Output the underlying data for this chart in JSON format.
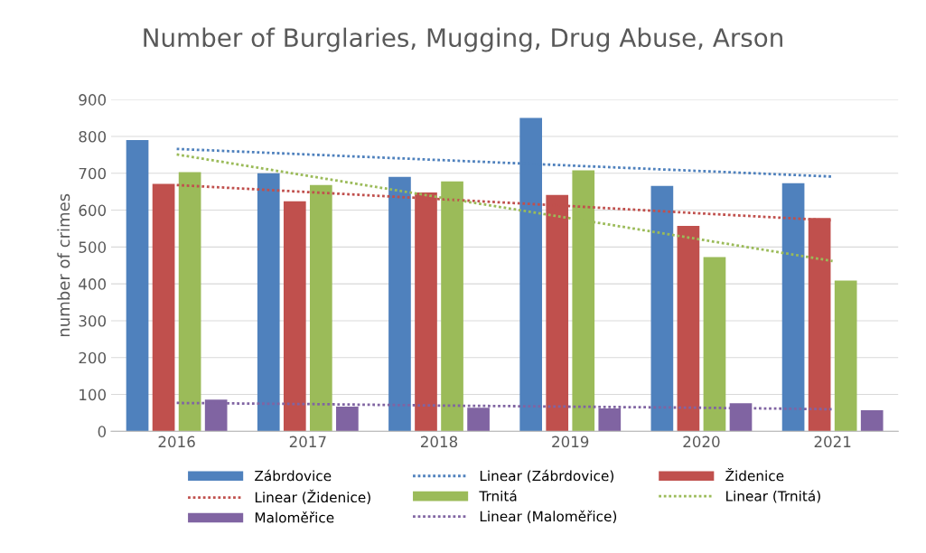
{
  "chart_data": {
    "type": "bar",
    "title": "Number of Burglaries, Mugging, Drug Abuse, Arson",
    "ylabel": "number of crimes",
    "categories": [
      "2016",
      "2017",
      "2018",
      "2019",
      "2020",
      "2021"
    ],
    "series": [
      {
        "name": "Zábrdovice",
        "color": "#4f81bd",
        "values": [
          790,
          700,
          690,
          850,
          666,
          673
        ]
      },
      {
        "name": "Linear (Zábrdovice)",
        "type": "line",
        "line_style": "dotted",
        "color": "#4f81bd",
        "values": [
          766,
          751,
          736,
          721,
          706,
          691
        ]
      },
      {
        "name": "Židenice",
        "color": "#c0504d",
        "values": [
          671,
          624,
          648,
          641,
          557,
          579
        ]
      },
      {
        "name": "Linear (Židenice)",
        "type": "line",
        "line_style": "dotted",
        "color": "#c0504d",
        "values": [
          668,
          649,
          630,
          611,
          591,
          572
        ]
      },
      {
        "name": "Trnitá",
        "color": "#9bbb59",
        "values": [
          703,
          668,
          678,
          708,
          473,
          409
        ]
      },
      {
        "name": "Linear (Trnitá)",
        "type": "line",
        "line_style": "dotted",
        "color": "#9bbb59",
        "values": [
          751,
          693,
          635,
          578,
          520,
          462
        ]
      },
      {
        "name": "Maloměřice",
        "color": "#8064a2",
        "values": [
          86,
          67,
          64,
          62,
          76,
          57
        ]
      },
      {
        "name": "Linear (Maloměřice)",
        "type": "line",
        "line_style": "dotted",
        "color": "#8064a2",
        "values": [
          77,
          74,
          70,
          67,
          64,
          60
        ]
      }
    ],
    "ylim": [
      0,
      900
    ],
    "yticks": [
      0,
      100,
      200,
      300,
      400,
      500,
      600,
      700,
      800,
      900
    ],
    "grid": "y",
    "legend": "bottom"
  }
}
